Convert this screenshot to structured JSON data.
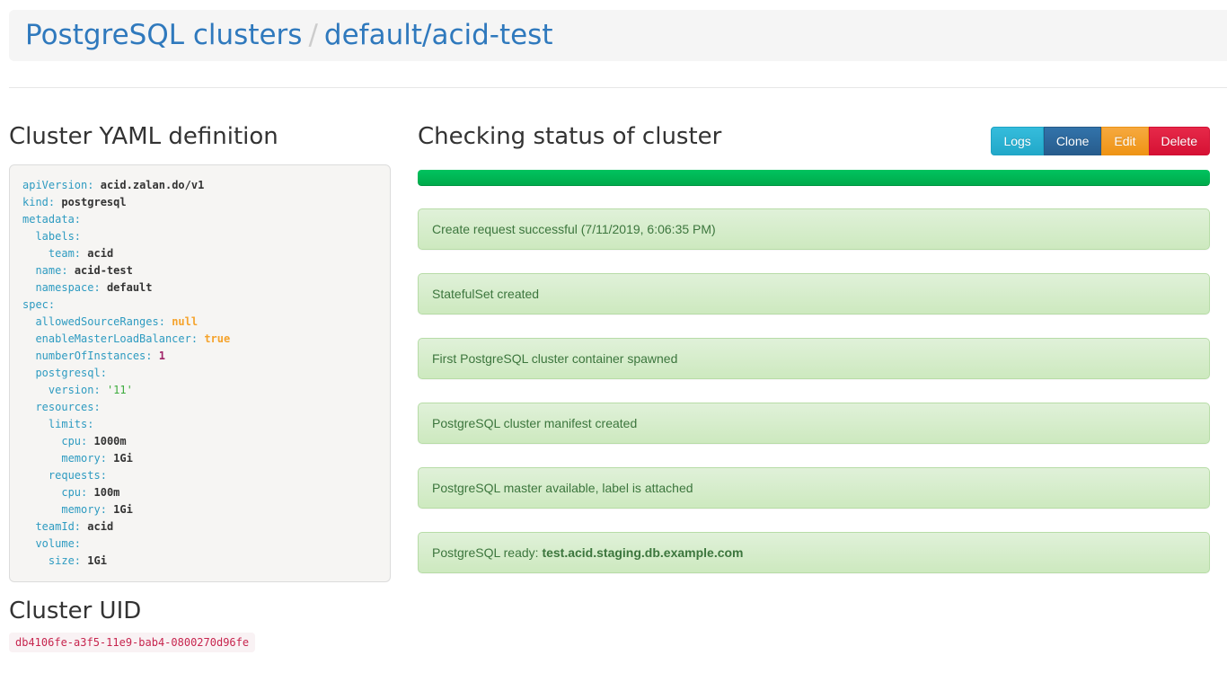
{
  "header": {
    "links": [
      {
        "label": "PostgreSQL clusters"
      },
      {
        "label": "default/acid-test"
      }
    ],
    "separator": "/"
  },
  "left": {
    "yaml_heading": "Cluster YAML definition",
    "yaml": [
      {
        "indent": 0,
        "key": "apiVersion",
        "value": "acid.zalan.do/v1",
        "type": "plain"
      },
      {
        "indent": 0,
        "key": "kind",
        "value": "postgresql",
        "type": "plain"
      },
      {
        "indent": 0,
        "key": "metadata"
      },
      {
        "indent": 1,
        "key": "labels"
      },
      {
        "indent": 2,
        "key": "team",
        "value": "acid",
        "type": "plain"
      },
      {
        "indent": 1,
        "key": "name",
        "value": "acid-test",
        "type": "plain"
      },
      {
        "indent": 1,
        "key": "namespace",
        "value": "default",
        "type": "plain"
      },
      {
        "indent": 0,
        "key": "spec"
      },
      {
        "indent": 1,
        "key": "allowedSourceRanges",
        "value": "null",
        "type": "literal"
      },
      {
        "indent": 1,
        "key": "enableMasterLoadBalancer",
        "value": "true",
        "type": "literal"
      },
      {
        "indent": 1,
        "key": "numberOfInstances",
        "value": "1",
        "type": "number"
      },
      {
        "indent": 1,
        "key": "postgresql"
      },
      {
        "indent": 2,
        "key": "version",
        "value": "'11'",
        "type": "string"
      },
      {
        "indent": 1,
        "key": "resources"
      },
      {
        "indent": 2,
        "key": "limits"
      },
      {
        "indent": 3,
        "key": "cpu",
        "value": "1000m",
        "type": "plain"
      },
      {
        "indent": 3,
        "key": "memory",
        "value": "1Gi",
        "type": "plain"
      },
      {
        "indent": 2,
        "key": "requests"
      },
      {
        "indent": 3,
        "key": "cpu",
        "value": "100m",
        "type": "plain"
      },
      {
        "indent": 3,
        "key": "memory",
        "value": "1Gi",
        "type": "plain"
      },
      {
        "indent": 1,
        "key": "teamId",
        "value": "acid",
        "type": "plain"
      },
      {
        "indent": 1,
        "key": "volume"
      },
      {
        "indent": 2,
        "key": "size",
        "value": "1Gi",
        "type": "plain"
      }
    ],
    "uid_heading": "Cluster UID",
    "uid": "db4106fe-a3f5-11e9-bab4-0800270d96fe"
  },
  "right": {
    "heading": "Checking status of cluster",
    "buttons": [
      {
        "label": "Logs",
        "top": "#35bcdc",
        "bottom": "#22a8c9",
        "border": "#1fa3c4"
      },
      {
        "label": "Clone",
        "top": "#3273aa",
        "bottom": "#275c8d",
        "border": "#265a88"
      },
      {
        "label": "Edit",
        "top": "#f6a93f",
        "bottom": "#ef9415",
        "border": "#eb9316"
      },
      {
        "label": "Delete",
        "top": "#e62949",
        "bottom": "#d61134",
        "border": "#d20f32"
      }
    ],
    "progress_percent": 100,
    "messages": [
      {
        "text": "Create request successful (7/11/2019, 6:06:35 PM)"
      },
      {
        "text": "StatefulSet created"
      },
      {
        "text": "First PostgreSQL cluster container spawned"
      },
      {
        "text": "PostgreSQL cluster manifest created"
      },
      {
        "text": "PostgreSQL master available, label is attached"
      },
      {
        "text": "PostgreSQL ready: ",
        "bold": "test.acid.staging.db.example.com"
      }
    ]
  },
  "colors": {
    "link": "#2f79bd",
    "breadcrumb_separator": "#cccccc",
    "progress_top": "#00c35f",
    "progress_bottom": "#00a94a",
    "alert_text": "#3c763d",
    "alert_border": "#b7dca7",
    "alert_bg_top": "#e0f1d9",
    "alert_bg_bottom": "#cde9bf",
    "uid_text": "#c7254e",
    "uid_bg": "#f9f2f4",
    "yaml_key": "#2e9bc1",
    "yaml_literal": "#f5a32c",
    "yaml_number": "#a02468",
    "yaml_string": "#3cab3c"
  }
}
